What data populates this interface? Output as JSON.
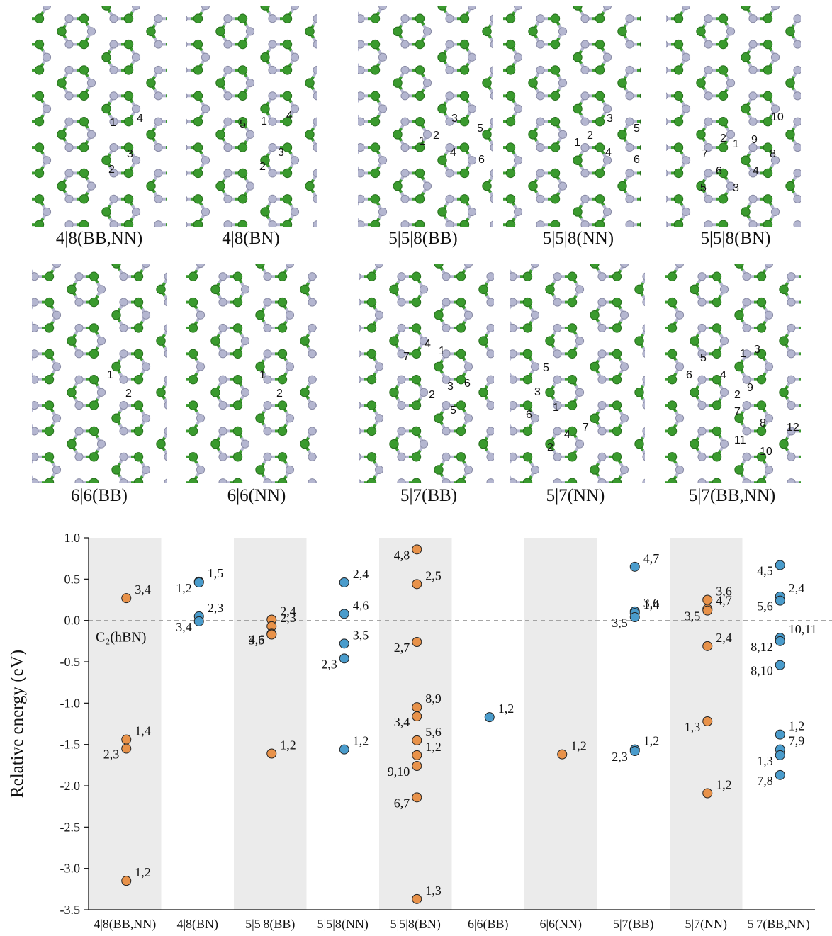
{
  "panels": [
    {
      "id": "p48bbnn",
      "caption": "4|8(BB,NN)",
      "labels": [
        "1",
        "2",
        "3",
        "4"
      ]
    },
    {
      "id": "p48bn",
      "caption": "4|8(BN)",
      "labels": [
        "1",
        "2",
        "3",
        "4",
        "5"
      ]
    },
    {
      "id": "p558bb",
      "caption": "5|5|8(BB)",
      "labels": [
        "1",
        "2",
        "3",
        "4",
        "5",
        "6"
      ]
    },
    {
      "id": "p558nn",
      "caption": "5|5|8(NN)",
      "labels": [
        "1",
        "2",
        "3",
        "4",
        "5",
        "6"
      ]
    },
    {
      "id": "p558bn",
      "caption": "5|5|8(BN)",
      "labels": [
        "1",
        "2",
        "3",
        "4",
        "5",
        "6",
        "7",
        "8",
        "9",
        "10"
      ]
    },
    {
      "id": "p66bb",
      "caption": "6|6(BB)",
      "labels": [
        "1",
        "2"
      ]
    },
    {
      "id": "p66nn",
      "caption": "6|6(NN)",
      "labels": [
        "1",
        "2"
      ]
    },
    {
      "id": "p57bb",
      "caption": "5|7(BB)",
      "labels": [
        "1",
        "2",
        "3",
        "4",
        "5",
        "6",
        "7"
      ]
    },
    {
      "id": "p57nn",
      "caption": "5|7(NN)",
      "labels": [
        "1",
        "2",
        "3",
        "4",
        "5",
        "6",
        "7"
      ]
    },
    {
      "id": "p57bbnn",
      "caption": "5|7(BB,NN)",
      "labels": [
        "1",
        "2",
        "3",
        "4",
        "5",
        "6",
        "7",
        "8",
        "9",
        "10",
        "11",
        "12"
      ]
    }
  ],
  "colors": {
    "boron_nitrogen_green": "#3a9a2e",
    "nitrogen_grey": "#b4b6d0",
    "orange": "#e8924a",
    "blue": "#4a9ccc",
    "band": "#ebebeb"
  },
  "chart_data": {
    "type": "scatter",
    "ylabel": "Relative energy (eV)",
    "ylim": [
      -3.5,
      1.0
    ],
    "yticks": [
      "1.0",
      "0.5",
      "0.0",
      "-0.5",
      "-1.0",
      "-1.5",
      "-2.0",
      "-2.5",
      "-3.0",
      "-3.5"
    ],
    "reference_label": "C₂(hBN)",
    "categories": [
      "4|8(BB,NN)",
      "4|8(BN)",
      "5|5|8(BB)",
      "5|5|8(NN)",
      "5|5|8(BN)",
      "6|6(BB)",
      "6|6(NN)",
      "5|7(BB)",
      "5|7(NN)",
      "5|7(BB,NN)"
    ],
    "series": [
      {
        "category": "4|8(BB,NN)",
        "color": "orange",
        "points": [
          {
            "y": 0.27,
            "label": "3,4"
          },
          {
            "y": -1.44,
            "label": "1,4"
          },
          {
            "y": -1.55,
            "label": "2,3"
          },
          {
            "y": -3.15,
            "label": "1,2"
          }
        ]
      },
      {
        "category": "4|8(BN)",
        "color": "blue",
        "points": [
          {
            "y": 0.47,
            "label": "1,5"
          },
          {
            "y": 0.46,
            "label": "1,2"
          },
          {
            "y": 0.05,
            "label": "2,3"
          },
          {
            "y": -0.01,
            "label": "3,4"
          }
        ]
      },
      {
        "category": "5|5|8(BB)",
        "color": "orange",
        "points": [
          {
            "y": 0.01,
            "label": "2,4"
          },
          {
            "y": -0.07,
            "label": "2,3"
          },
          {
            "y": -0.16,
            "label": "4,6"
          },
          {
            "y": -0.17,
            "label": "3,5"
          },
          {
            "y": -1.61,
            "label": "1,2"
          }
        ]
      },
      {
        "category": "5|5|8(NN)",
        "color": "blue",
        "points": [
          {
            "y": 0.46,
            "label": "2,4"
          },
          {
            "y": 0.08,
            "label": "4,6"
          },
          {
            "y": -0.28,
            "label": "3,5"
          },
          {
            "y": -0.46,
            "label": "2,3"
          },
          {
            "y": -1.56,
            "label": "1,2"
          }
        ]
      },
      {
        "category": "5|5|8(BN)",
        "color": "orange",
        "points": [
          {
            "y": 0.86,
            "label": "4,8"
          },
          {
            "y": 0.44,
            "label": "2,5"
          },
          {
            "y": -0.26,
            "label": "2,7"
          },
          {
            "y": -1.05,
            "label": "8,9"
          },
          {
            "y": -1.16,
            "label": "3,4"
          },
          {
            "y": -1.45,
            "label": "5,6"
          },
          {
            "y": -1.63,
            "label": "1,2"
          },
          {
            "y": -1.76,
            "label": "9,10"
          },
          {
            "y": -2.14,
            "label": "6,7"
          },
          {
            "y": -3.37,
            "label": "1,3"
          }
        ]
      },
      {
        "category": "6|6(BB)",
        "color": "blue",
        "points": [
          {
            "y": -1.17,
            "label": "1,2"
          }
        ]
      },
      {
        "category": "6|6(NN)",
        "color": "orange",
        "points": [
          {
            "y": -1.62,
            "label": "1,2"
          }
        ]
      },
      {
        "category": "5|7(BB)",
        "color": "blue",
        "points": [
          {
            "y": 0.65,
            "label": "4,7"
          },
          {
            "y": 0.11,
            "label": "3,6"
          },
          {
            "y": 0.09,
            "label": "1,4"
          },
          {
            "y": 0.04,
            "label": "3,5"
          },
          {
            "y": -1.56,
            "label": "1,2"
          },
          {
            "y": -1.58,
            "label": "2,3"
          }
        ]
      },
      {
        "category": "5|7(NN)",
        "color": "orange",
        "points": [
          {
            "y": 0.25,
            "label": "3,6"
          },
          {
            "y": 0.14,
            "label": "4,7"
          },
          {
            "y": 0.12,
            "label": "3,5"
          },
          {
            "y": -0.31,
            "label": "2,4"
          },
          {
            "y": -1.22,
            "label": "1,3"
          },
          {
            "y": -2.09,
            "label": "1,2"
          }
        ]
      },
      {
        "category": "5|7(BB,NN)",
        "color": "blue",
        "points": [
          {
            "y": 0.67,
            "label": "4,5"
          },
          {
            "y": 0.29,
            "label": "2,4"
          },
          {
            "y": 0.24,
            "label": "5,6"
          },
          {
            "y": -0.21,
            "label": "10,11"
          },
          {
            "y": -0.25,
            "label": "8,12"
          },
          {
            "y": -0.54,
            "label": "8,10"
          },
          {
            "y": -1.38,
            "label": "1,2"
          },
          {
            "y": -1.56,
            "label": "7,9"
          },
          {
            "y": -1.63,
            "label": "1,3"
          },
          {
            "y": -1.87,
            "label": "7,8"
          }
        ]
      }
    ]
  }
}
